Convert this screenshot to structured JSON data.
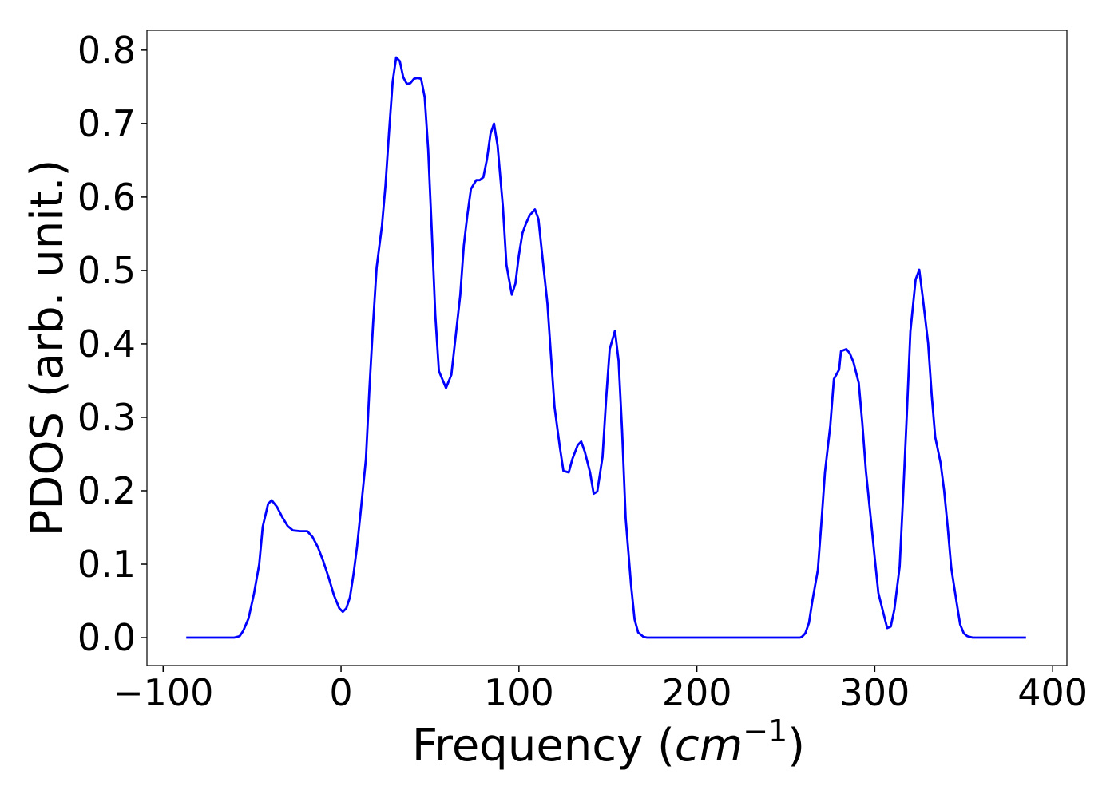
{
  "chart_data": {
    "type": "line",
    "x_label": {
      "text": "Frequency (",
      "unit": "cm",
      "exponent": "−1",
      "close": ")"
    },
    "y_label": "PDOS (arb. unit.)",
    "x": [
      -87,
      -60,
      -57,
      -55,
      -52,
      -49,
      -46,
      -44,
      -41,
      -39,
      -36,
      -33,
      -30,
      -27,
      -23,
      -19,
      -16,
      -13,
      -10,
      -7,
      -4,
      -1,
      1,
      3,
      5,
      7,
      9,
      11,
      14,
      16,
      18,
      20,
      23,
      25,
      27,
      29,
      31,
      33,
      35,
      37,
      39,
      41,
      43,
      45,
      47,
      49,
      51,
      53,
      55,
      59,
      62,
      64,
      67,
      69,
      71,
      73,
      76,
      78,
      80,
      82,
      84,
      86,
      88,
      91,
      93,
      96,
      98,
      100,
      102,
      104,
      106,
      109,
      111,
      113,
      116,
      118,
      120,
      123,
      125,
      128,
      130,
      133,
      135,
      137,
      140,
      142,
      144,
      147,
      149,
      151,
      154,
      156,
      158,
      160,
      163,
      165,
      167,
      170,
      172,
      258,
      259,
      261,
      263,
      265,
      268,
      270,
      272,
      275,
      277,
      280,
      281,
      284,
      286,
      288,
      291,
      293,
      295,
      298,
      300,
      302,
      305,
      307,
      309,
      311,
      314,
      316,
      318,
      320,
      323,
      325,
      327,
      330,
      332,
      334,
      337,
      339,
      341,
      343,
      346,
      348,
      350,
      352,
      355,
      385
    ],
    "series": [
      {
        "name": "PDOS",
        "color": "#0000ff",
        "values": [
          0,
          0,
          0.002,
          0.009,
          0.026,
          0.059,
          0.1,
          0.151,
          0.182,
          0.187,
          0.178,
          0.164,
          0.152,
          0.146,
          0.145,
          0.145,
          0.137,
          0.123,
          0.104,
          0.082,
          0.058,
          0.04,
          0.035,
          0.04,
          0.055,
          0.086,
          0.124,
          0.171,
          0.243,
          0.341,
          0.428,
          0.504,
          0.561,
          0.616,
          0.689,
          0.757,
          0.79,
          0.785,
          0.763,
          0.754,
          0.755,
          0.761,
          0.762,
          0.761,
          0.736,
          0.664,
          0.553,
          0.439,
          0.363,
          0.34,
          0.358,
          0.401,
          0.466,
          0.534,
          0.575,
          0.611,
          0.623,
          0.623,
          0.627,
          0.651,
          0.686,
          0.7,
          0.67,
          0.586,
          0.508,
          0.467,
          0.482,
          0.521,
          0.551,
          0.564,
          0.575,
          0.583,
          0.57,
          0.523,
          0.455,
          0.385,
          0.314,
          0.259,
          0.227,
          0.225,
          0.243,
          0.262,
          0.267,
          0.253,
          0.225,
          0.196,
          0.199,
          0.246,
          0.325,
          0.393,
          0.418,
          0.377,
          0.282,
          0.162,
          0.072,
          0.025,
          0.007,
          0.001,
          0,
          0,
          0.001,
          0.006,
          0.02,
          0.051,
          0.092,
          0.157,
          0.225,
          0.289,
          0.352,
          0.365,
          0.39,
          0.393,
          0.387,
          0.375,
          0.347,
          0.292,
          0.227,
          0.157,
          0.108,
          0.061,
          0.032,
          0.013,
          0.015,
          0.038,
          0.097,
          0.195,
          0.303,
          0.417,
          0.488,
          0.501,
          0.463,
          0.401,
          0.33,
          0.273,
          0.238,
          0.2,
          0.151,
          0.095,
          0.048,
          0.018,
          0.006,
          0.002,
          0,
          0
        ]
      }
    ],
    "xlim": [
      -109.1,
      408
    ],
    "ylim": [
      -0.038,
      0.827
    ],
    "xticks": [
      {
        "value": -100,
        "label": "−100"
      },
      0,
      100,
      200,
      300,
      400
    ],
    "yticks": [
      {
        "value": 0,
        "label": "0.0"
      },
      0.1,
      0.2,
      0.3,
      0.4,
      0.5,
      0.6,
      0.7,
      0.8
    ],
    "grid": false
  }
}
